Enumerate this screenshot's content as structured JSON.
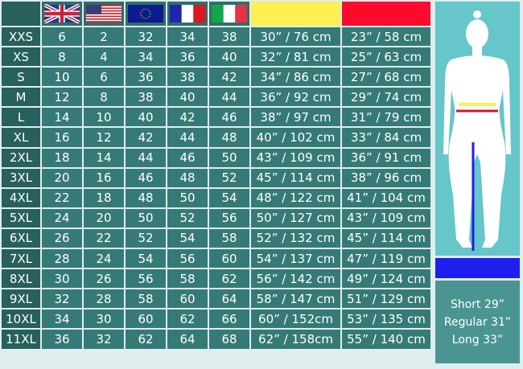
{
  "colors": {
    "hips": "#fdf050",
    "waist": "#ff0a2c",
    "inseam": "#1e1ef0",
    "cell": "#357a76",
    "figure_bg": "#66c6c9"
  },
  "header": {
    "flags": [
      "uk-flag",
      "us-flag",
      "eu-flag",
      "france-flag",
      "italy-flag"
    ]
  },
  "rows": [
    [
      "XXS",
      "6",
      "2",
      "32",
      "34",
      "38",
      "30” / 76 cm",
      "23” / 58 cm"
    ],
    [
      "XS",
      "8",
      "4",
      "34",
      "36",
      "40",
      "32” / 81 cm",
      "25” / 63 cm"
    ],
    [
      "S",
      "10",
      "6",
      "36",
      "38",
      "42",
      "34” / 86 cm",
      "27” / 68 cm"
    ],
    [
      "M",
      "12",
      "8",
      "38",
      "40",
      "44",
      "36” / 92 cm",
      "29” / 74 cm"
    ],
    [
      "L",
      "14",
      "10",
      "40",
      "42",
      "46",
      "38” / 97 cm",
      "31” / 79 cm"
    ],
    [
      "XL",
      "16",
      "12",
      "42",
      "44",
      "48",
      "40” / 102 cm",
      "33” / 84 cm"
    ],
    [
      "2XL",
      "18",
      "14",
      "44",
      "46",
      "50",
      "43” / 109 cm",
      "36” / 91 cm"
    ],
    [
      "3XL",
      "20",
      "16",
      "46",
      "48",
      "52",
      "45” / 114 cm",
      "38” / 96 cm"
    ],
    [
      "4XL",
      "22",
      "18",
      "48",
      "50",
      "54",
      "48” / 122 cm",
      "41” / 104 cm"
    ],
    [
      "5XL",
      "24",
      "20",
      "50",
      "52",
      "56",
      "50” / 127 cm",
      "43” / 109 cm"
    ],
    [
      "6XL",
      "26",
      "22",
      "52",
      "54",
      "58",
      "52” / 132 cm",
      "45” / 114 cm"
    ],
    [
      "7XL",
      "28",
      "24",
      "54",
      "56",
      "60",
      "54” / 137 cm",
      "47” / 119 cm"
    ],
    [
      "8XL",
      "30",
      "26",
      "56",
      "58",
      "62",
      "56” / 142 cm",
      "49” / 124 cm"
    ],
    [
      "9XL",
      "32",
      "28",
      "58",
      "60",
      "64",
      "58” / 147 cm",
      "51” / 129 cm"
    ],
    [
      "10XL",
      "34",
      "30",
      "60",
      "62",
      "66",
      "60” / 152cm",
      "53” / 135 cm"
    ],
    [
      "11XL",
      "36",
      "32",
      "62",
      "64",
      "68",
      "62” / 158cm",
      "55” / 140 cm"
    ]
  ],
  "inseam": {
    "short": "Short 29”",
    "regular": "Regular 31”",
    "long": "Long 33”"
  }
}
